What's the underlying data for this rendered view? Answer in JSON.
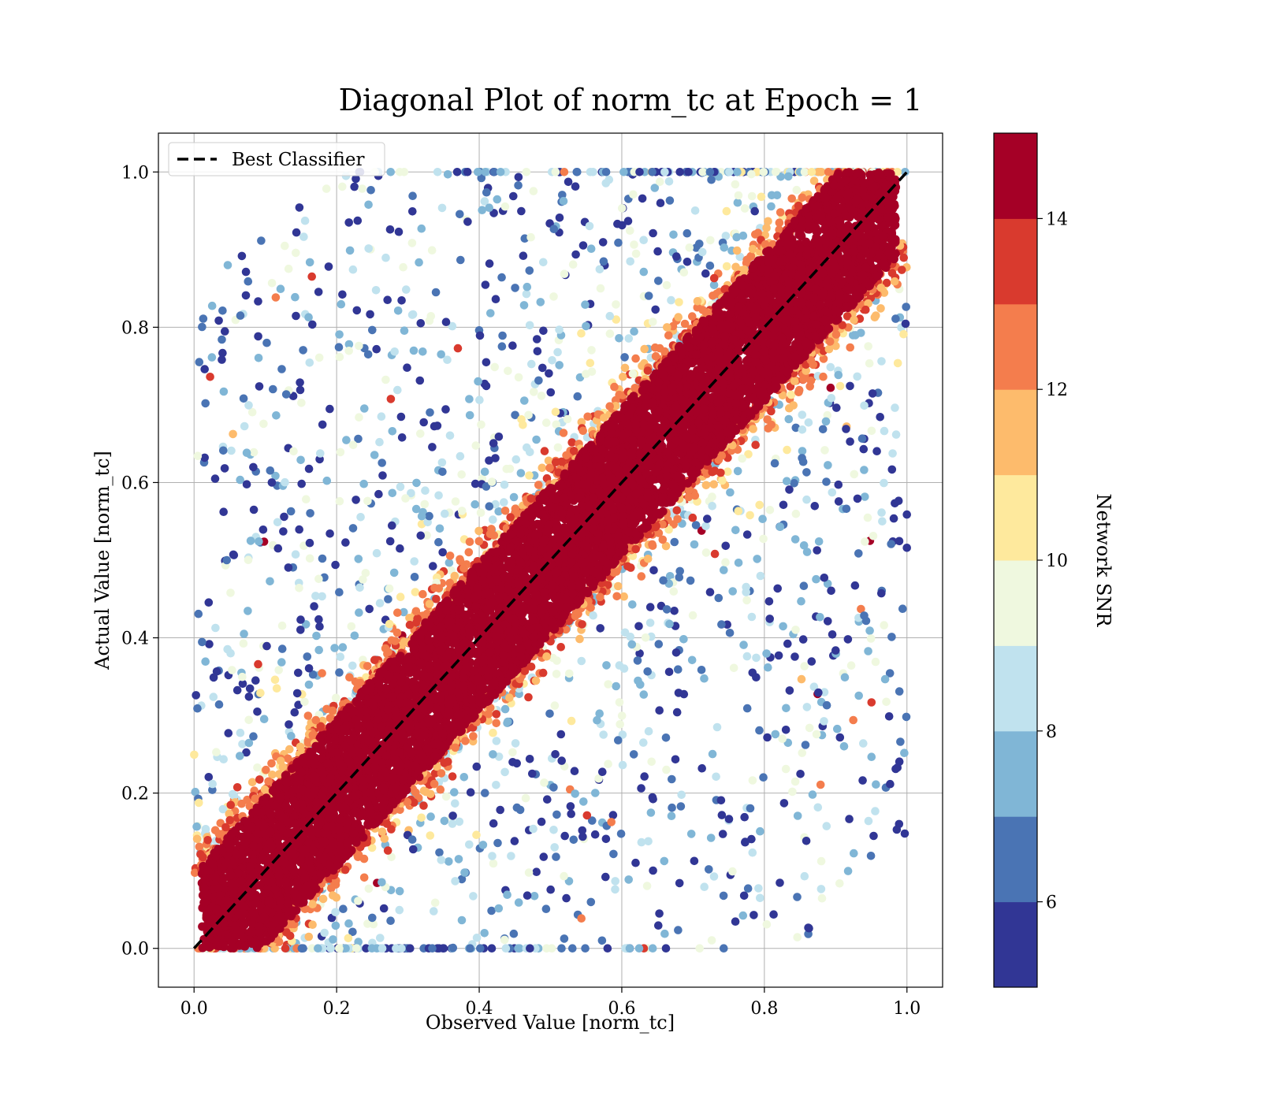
{
  "chart_data": {
    "type": "scatter",
    "title": "Diagonal Plot of norm_tc at Epoch = 1",
    "xlabel": "Observed Value [norm_tc]",
    "ylabel": "Actual Value [norm_tc]",
    "xlim": [
      -0.05,
      1.05
    ],
    "ylim": [
      -0.05,
      1.05
    ],
    "xticks": [
      "0.0",
      "0.2",
      "0.4",
      "0.6",
      "0.8",
      "1.0"
    ],
    "yticks": [
      "0.0",
      "0.2",
      "0.4",
      "0.6",
      "0.8",
      "1.0"
    ],
    "grid": true,
    "legend": {
      "position": "top-left",
      "entries": [
        "Best Classifier"
      ]
    },
    "reference_line": {
      "name": "Best Classifier",
      "style": "dashed",
      "color": "#000000",
      "from": [
        0,
        0
      ],
      "to": [
        1,
        1
      ]
    },
    "colorbar": {
      "label": "Network SNR",
      "min": 5,
      "max": 15,
      "ticks": [
        "6",
        "8",
        "10",
        "12",
        "14"
      ],
      "tick_values": [
        6,
        8,
        10,
        12,
        14
      ],
      "bin_edges": [
        5,
        6,
        7,
        8,
        9,
        10,
        11,
        12,
        13,
        14,
        15
      ],
      "colors": [
        "#313695",
        "#4a74b4",
        "#80b6d6",
        "#c0e2ee",
        "#eff8df",
        "#fee99d",
        "#fdbb6c",
        "#f47d4d",
        "#d93a2e",
        "#a50026"
      ]
    },
    "description_of_distribution": {
      "high_snr_band_halfwidth": 0.1,
      "band_snr": 15,
      "scatter_region": "points spread away from the diagonal with lower SNR (5-11) filling the region between y=0 and y=1"
    }
  }
}
